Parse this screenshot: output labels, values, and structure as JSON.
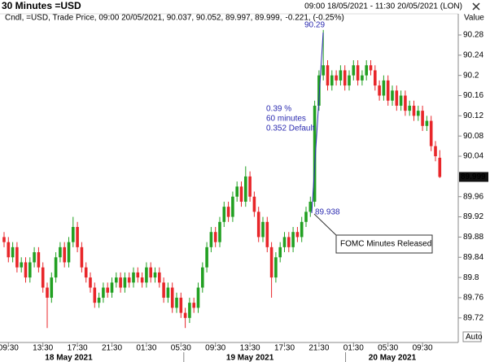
{
  "chart_data": {
    "type": "candlestick",
    "title": "30 Minutes =USD",
    "range": "09:00 18/05/2021 - 11:30 20/05/2021 (LON)",
    "info": "Cndl, =USD, Trade Price, 09:00 20/05/2021, 90.037, 90.052, 89.997, 89.999,",
    "change": "-0.221, (-0.25%)",
    "y_label": "Value",
    "auto_button": "Auto",
    "up_color": "#22a022",
    "down_color": "#e8262a",
    "change_color": "#e8262a",
    "ylim": [
      89.673,
      90.317
    ],
    "yticks": [
      89.72,
      89.76,
      89.8,
      89.84,
      89.88,
      89.92,
      89.96,
      90.04,
      90.08,
      90.12,
      90.16,
      90.2,
      90.24,
      90.28
    ],
    "categories": [
      null,
      "09:30",
      null,
      null,
      null,
      null,
      null,
      null,
      null,
      "13:30",
      null,
      null,
      null,
      null,
      null,
      null,
      null,
      "17:30",
      null,
      null,
      null,
      null,
      null,
      null,
      null,
      "21:30",
      null,
      null,
      null,
      null,
      null,
      null,
      null,
      "01:30",
      null,
      null,
      null,
      null,
      null,
      null,
      null,
      "05:30",
      null,
      null,
      null,
      null,
      null,
      null,
      null,
      "09:30",
      null,
      null,
      null,
      null,
      null,
      null,
      null,
      "13:30",
      null,
      null,
      null,
      null,
      null,
      null,
      null,
      "17:30",
      null,
      null,
      null,
      null,
      null,
      null,
      null,
      "21:30",
      null,
      null,
      null,
      null,
      null,
      null,
      null,
      "01:30",
      null,
      null,
      null,
      null,
      null,
      null,
      null,
      "05:30",
      null,
      null,
      null,
      null,
      null,
      null,
      null,
      "09:30",
      null,
      null,
      null,
      null
    ],
    "dates": [
      null,
      null,
      null,
      null,
      null,
      null,
      null,
      null,
      null,
      null,
      null,
      null,
      null,
      null,
      null,
      "18 May 2021",
      null,
      null,
      null,
      null,
      null,
      null,
      null,
      null,
      null,
      null,
      null,
      null,
      null,
      null,
      null,
      null,
      null,
      null,
      null,
      null,
      null,
      null,
      null,
      null,
      null,
      null,
      null,
      null,
      null,
      null,
      null,
      null,
      null,
      null,
      null,
      null,
      null,
      null,
      null,
      null,
      null,
      "19 May 2021",
      null,
      null,
      null,
      null,
      null,
      null,
      null,
      null,
      null,
      null,
      null,
      null,
      null,
      null,
      null,
      null,
      null,
      null,
      null,
      null,
      null,
      null,
      null,
      null,
      null,
      null,
      null,
      null,
      null,
      null,
      null,
      null,
      "20 May 2021",
      null,
      null,
      null,
      null,
      null,
      null,
      null
    ],
    "open": [
      89.88,
      89.87,
      89.84,
      89.86,
      89.82,
      89.83,
      89.8,
      89.83,
      89.85,
      89.82,
      89.78,
      89.76,
      89.8,
      89.84,
      89.86,
      89.83,
      89.87,
      89.9,
      89.86,
      89.82,
      89.8,
      89.78,
      89.75,
      89.76,
      89.78,
      89.77,
      89.79,
      89.8,
      89.78,
      89.8,
      89.79,
      89.81,
      89.8,
      89.79,
      89.82,
      89.8,
      89.81,
      89.79,
      89.76,
      89.78,
      89.74,
      89.76,
      89.73,
      89.72,
      89.75,
      89.74,
      89.78,
      89.82,
      89.86,
      89.89,
      89.87,
      89.91,
      89.94,
      89.92,
      89.96,
      89.98,
      89.95,
      90.0,
      89.96,
      89.93,
      89.88,
      89.91,
      89.86,
      89.8,
      89.84,
      89.86,
      89.88,
      89.86,
      89.89,
      89.88,
      89.91,
      89.93,
      89.95,
      90.14,
      90.2,
      90.22,
      90.18,
      90.2,
      90.19,
      90.21,
      90.18,
      90.2,
      90.22,
      90.19,
      90.2,
      90.22,
      90.21,
      90.18,
      90.16,
      90.19,
      90.15,
      90.17,
      90.14,
      90.16,
      90.13,
      90.14,
      90.12,
      90.13,
      90.1,
      90.11,
      90.06,
      90.037
    ],
    "high": [
      89.89,
      89.88,
      89.87,
      89.87,
      89.84,
      89.84,
      89.84,
      89.86,
      89.86,
      89.83,
      89.79,
      89.81,
      89.85,
      89.87,
      89.87,
      89.88,
      89.92,
      89.91,
      89.87,
      89.83,
      89.81,
      89.79,
      89.77,
      89.79,
      89.79,
      89.8,
      89.81,
      89.81,
      89.81,
      89.81,
      89.82,
      89.82,
      89.81,
      89.83,
      89.83,
      89.82,
      89.82,
      89.8,
      89.79,
      89.79,
      89.77,
      89.77,
      89.74,
      89.76,
      89.76,
      89.79,
      89.83,
      89.87,
      89.9,
      89.9,
      89.92,
      89.95,
      89.95,
      89.97,
      89.99,
      89.99,
      90.02,
      90.01,
      89.97,
      89.94,
      89.92,
      89.92,
      89.87,
      89.85,
      89.87,
      89.89,
      89.89,
      89.9,
      89.9,
      89.92,
      89.94,
      89.96,
      90.15,
      90.21,
      90.29,
      90.23,
      90.21,
      90.21,
      90.22,
      90.22,
      90.21,
      90.23,
      90.23,
      90.21,
      90.23,
      90.23,
      90.22,
      90.19,
      90.2,
      90.2,
      90.18,
      90.18,
      90.17,
      90.17,
      90.15,
      90.15,
      90.14,
      90.14,
      90.12,
      90.12,
      90.07,
      90.052
    ],
    "low": [
      89.86,
      89.83,
      89.83,
      89.81,
      89.81,
      89.79,
      89.79,
      89.82,
      89.81,
      89.77,
      89.7,
      89.75,
      89.79,
      89.83,
      89.82,
      89.82,
      89.86,
      89.85,
      89.81,
      89.79,
      89.77,
      89.74,
      89.74,
      89.75,
      89.76,
      89.76,
      89.78,
      89.77,
      89.77,
      89.78,
      89.78,
      89.79,
      89.78,
      89.78,
      89.79,
      89.79,
      89.78,
      89.75,
      89.75,
      89.73,
      89.73,
      89.72,
      89.7,
      89.71,
      89.73,
      89.73,
      89.77,
      89.81,
      89.85,
      89.86,
      89.86,
      89.9,
      89.91,
      89.91,
      89.95,
      89.94,
      89.94,
      89.95,
      89.92,
      89.87,
      89.87,
      89.85,
      89.76,
      89.79,
      89.83,
      89.85,
      89.85,
      89.85,
      89.87,
      89.87,
      89.9,
      89.92,
      89.94,
      90.13,
      90.19,
      90.17,
      90.17,
      90.18,
      90.18,
      90.17,
      90.17,
      90.19,
      90.18,
      90.18,
      90.19,
      90.2,
      90.17,
      90.15,
      90.15,
      90.14,
      90.14,
      90.13,
      90.13,
      90.12,
      90.12,
      90.11,
      90.11,
      90.09,
      90.09,
      90.05,
      90.03,
      89.997
    ],
    "close": [
      89.87,
      89.84,
      89.86,
      89.82,
      89.83,
      89.8,
      89.83,
      89.85,
      89.82,
      89.78,
      89.76,
      89.8,
      89.84,
      89.86,
      89.83,
      89.87,
      89.9,
      89.86,
      89.82,
      89.8,
      89.78,
      89.75,
      89.76,
      89.78,
      89.77,
      89.79,
      89.8,
      89.78,
      89.8,
      89.79,
      89.81,
      89.8,
      89.79,
      89.82,
      89.8,
      89.81,
      89.79,
      89.76,
      89.78,
      89.74,
      89.76,
      89.73,
      89.72,
      89.75,
      89.74,
      89.78,
      89.82,
      89.86,
      89.89,
      89.87,
      89.91,
      89.94,
      89.92,
      89.96,
      89.98,
      89.95,
      90.0,
      89.96,
      89.93,
      89.88,
      89.91,
      89.86,
      89.8,
      89.84,
      89.86,
      89.88,
      89.86,
      89.89,
      89.88,
      89.91,
      89.93,
      89.95,
      90.14,
      90.2,
      90.22,
      90.18,
      90.2,
      90.19,
      90.21,
      90.18,
      90.2,
      90.22,
      90.19,
      90.2,
      90.22,
      90.21,
      90.18,
      90.16,
      90.19,
      90.15,
      90.17,
      90.14,
      90.16,
      90.13,
      90.14,
      90.12,
      90.13,
      90.1,
      90.11,
      90.06,
      90.04,
      89.999
    ],
    "annotations": {
      "peak": "90.29",
      "move": "0.39 %",
      "duration": "60 minutes",
      "default": "0.352 Default",
      "start": "89.938",
      "event": "FOMC Minutes Released"
    }
  }
}
